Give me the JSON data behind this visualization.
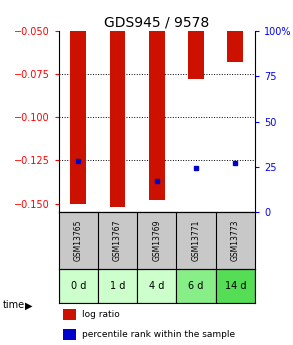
{
  "title": "GDS945 / 9578",
  "samples": [
    "GSM13765",
    "GSM13767",
    "GSM13769",
    "GSM13771",
    "GSM13773"
  ],
  "time_labels": [
    "0 d",
    "1 d",
    "4 d",
    "6 d",
    "14 d"
  ],
  "log_ratios": [
    -0.15,
    -0.152,
    -0.148,
    -0.078,
    -0.068
  ],
  "percentile_ranks": [
    28.0,
    null,
    17.0,
    24.5,
    27.0
  ],
  "ylim_left": [
    -0.155,
    -0.05
  ],
  "ylim_right": [
    0,
    100
  ],
  "yticks_left": [
    -0.15,
    -0.125,
    -0.1,
    -0.075,
    -0.05
  ],
  "yticks_right": [
    0,
    25,
    50,
    75,
    100
  ],
  "hlines": [
    -0.075,
    -0.1,
    -0.125
  ],
  "bar_color": "#cc1100",
  "dot_color": "#0000cc",
  "bar_width": 0.4,
  "gsm_bg_color": "#c8c8c8",
  "time_bg_colors": [
    "#ccffcc",
    "#ccffcc",
    "#ccffcc",
    "#88ee88",
    "#55dd55"
  ],
  "legend_items": [
    {
      "label": "log ratio",
      "color": "#cc1100"
    },
    {
      "label": "percentile rank within the sample",
      "color": "#0000cc"
    }
  ],
  "title_fontsize": 10,
  "tick_fontsize": 7,
  "label_fontsize": 7,
  "figsize": [
    2.93,
    3.45
  ],
  "dpi": 100
}
